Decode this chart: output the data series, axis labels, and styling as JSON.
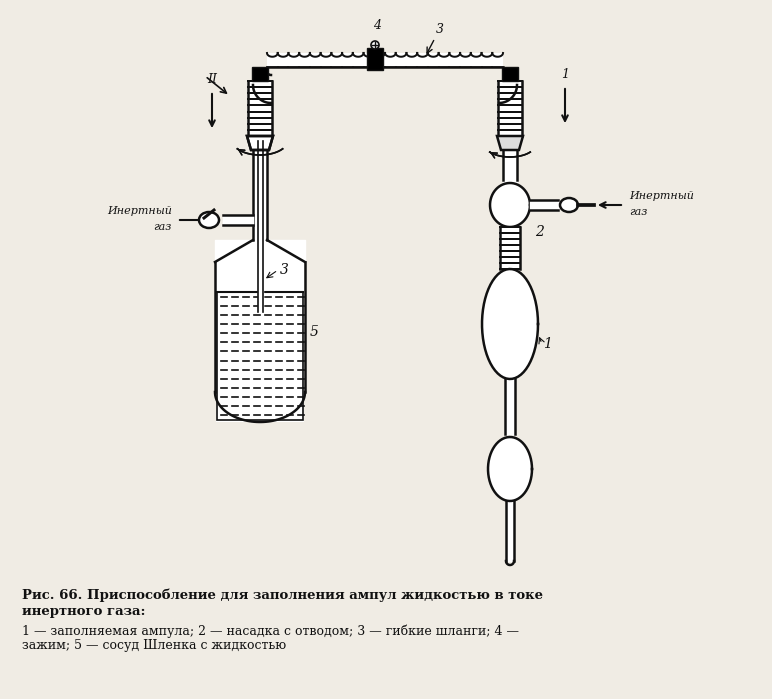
{
  "bg_color": "#f0ece4",
  "title_line1": "Рис. 66. Приспособление для заполнения ампул жидкостью в токе",
  "title_line2": "инертного газа:",
  "legend": "1 — заполняемая ампула; 2 — насадка с отводом; 3 — гибкие шланги; 4 —\nзажим; 5 — сосуд Шленка с жидкостью",
  "text_color": "#111111",
  "line_color": "#111111",
  "lw": 1.8,
  "figsize": [
    7.72,
    6.99
  ],
  "dpi": 100
}
